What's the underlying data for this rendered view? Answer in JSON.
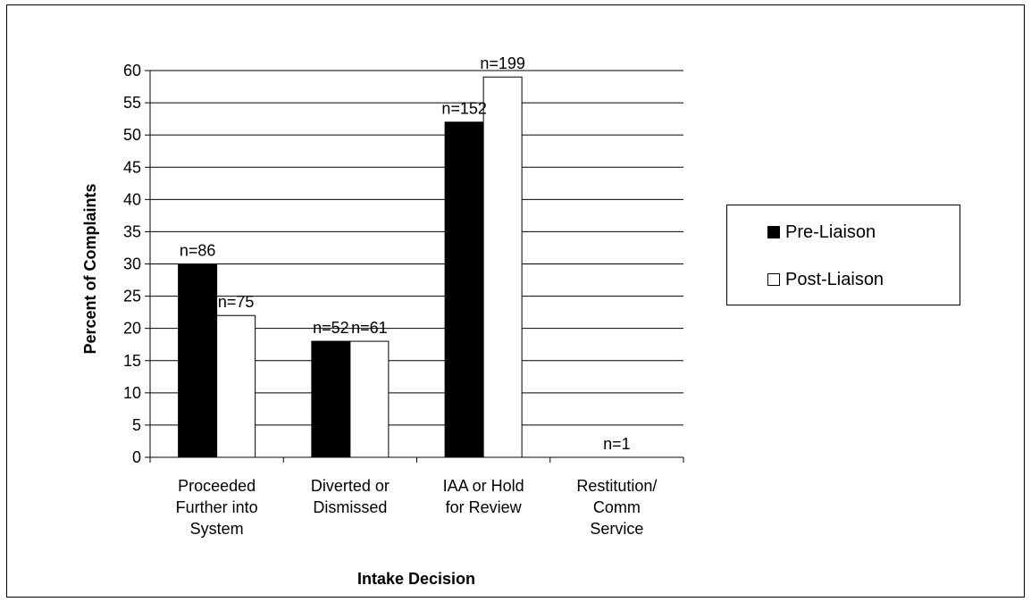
{
  "chart_data": {
    "type": "bar",
    "title": "",
    "xlabel": "Intake Decision",
    "ylabel": "Percent of Complaints",
    "ylim": [
      0,
      60
    ],
    "ytick_step": 5,
    "grid": "horizontal",
    "legend_position": "right",
    "categories": [
      [
        "Proceeded",
        "Further into",
        "System"
      ],
      [
        "Diverted or",
        "Dismissed"
      ],
      [
        "IAA or Hold",
        "for Review"
      ],
      [
        "Restitution/",
        "Comm",
        "Service"
      ]
    ],
    "series": [
      {
        "name": "Pre-Liaison",
        "color": "#000000",
        "values": [
          30,
          18,
          52,
          0
        ],
        "labels": [
          "n=86",
          "n=52",
          "n=152",
          ""
        ]
      },
      {
        "name": "Post-Liaison",
        "color": "#ffffff",
        "values": [
          22,
          18,
          59,
          0
        ],
        "labels": [
          "n=75",
          "n=61",
          "n=199",
          "n=1"
        ]
      }
    ]
  }
}
